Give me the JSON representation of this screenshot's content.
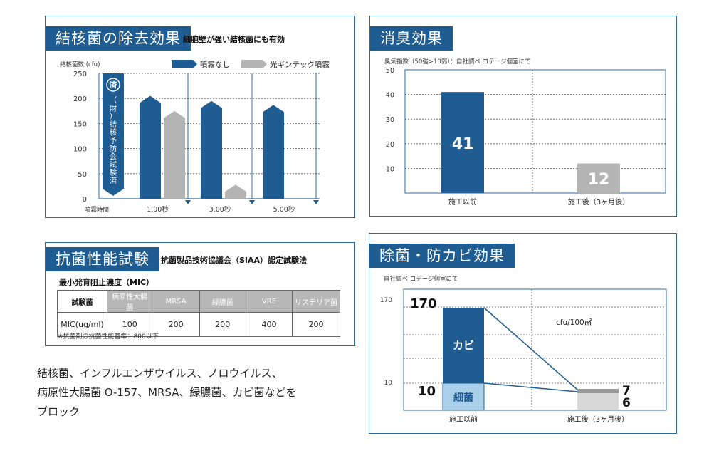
{
  "tb": {
    "title": "結核菌の除去効果",
    "subtitle": "細胞壁が強い結核菌にも有効",
    "ylabel": "結核菌数 (cfu)",
    "legend": [
      "噴霧なし",
      "光ギンテック噴霧"
    ],
    "badge_mark": "済",
    "badge_text": "（財）結核予防会試験済",
    "xaxis_title": "噴霧時間",
    "yticks": [
      "250",
      "200",
      "150",
      "100",
      "50",
      "0"
    ]
  },
  "deo": {
    "title": "消臭効果",
    "subtitle": "臭気指数（50強>10弱）：自社調べ コテージ個室にて",
    "yticks": [
      "50",
      "40",
      "30",
      "20",
      "10"
    ]
  },
  "antibac": {
    "title": "抗菌性能試験",
    "subtitle": "抗菌製品技術協議会（SIAA）認定試験法",
    "table_title": "最小発育阻止濃度（MIC）",
    "headers": [
      "試験菌",
      "病原性大腸菌",
      "MRSA",
      "緑膿菌",
      "VRE",
      "リステリア菌"
    ],
    "row_label": "MIC(ug/ml)",
    "row_values": [
      "100",
      "200",
      "200",
      "400",
      "200"
    ],
    "note": "※抗菌剤の抗菌性能基準：800以下"
  },
  "mold": {
    "title": "除菌・防カビ効果",
    "subtitle": "自社調べ コテージ個室にて",
    "unit": "cfu/100㎡",
    "yticks": [
      "170",
      "10"
    ],
    "seg_labels": [
      "カビ",
      "細菌"
    ]
  },
  "body_text": [
    "結核菌、インフルエンザウイルス、ノロウイルス、",
    "病原性大腸菌 O-157、MRSA、緑膿菌、カビ菌などを",
    "ブロック"
  ],
  "colors": {
    "blue": "#1f5c92",
    "gray": "#b4b4b4",
    "lightblue": "#a9cfea",
    "frame": "#2d6aa8"
  },
  "chart_data": [
    {
      "type": "bar",
      "title": "結核菌の除去効果",
      "ylabel": "結核菌数 (cfu)",
      "xlabel": "噴霧時間",
      "categories": [
        "1.00秒",
        "3.00秒",
        "5.00秒"
      ],
      "ylim": [
        0,
        250
      ],
      "series": [
        {
          "name": "噴霧なし",
          "values": [
            205,
            195,
            187
          ]
        },
        {
          "name": "光ギンテック噴霧",
          "values": [
            175,
            28,
            0
          ]
        }
      ]
    },
    {
      "type": "bar",
      "title": "消臭効果",
      "categories": [
        "施工以前",
        "施工後（3ヶ月後）"
      ],
      "ylim": [
        0,
        50
      ],
      "values": [
        41,
        12
      ]
    },
    {
      "type": "bar",
      "title": "除菌・防カビ効果",
      "categories": [
        "施工以前",
        "施工後（3ヶ月後）"
      ],
      "series": [
        {
          "name": "カビ",
          "values": [
            170,
            7
          ]
        },
        {
          "name": "細菌",
          "values": [
            10,
            6
          ]
        }
      ]
    }
  ]
}
